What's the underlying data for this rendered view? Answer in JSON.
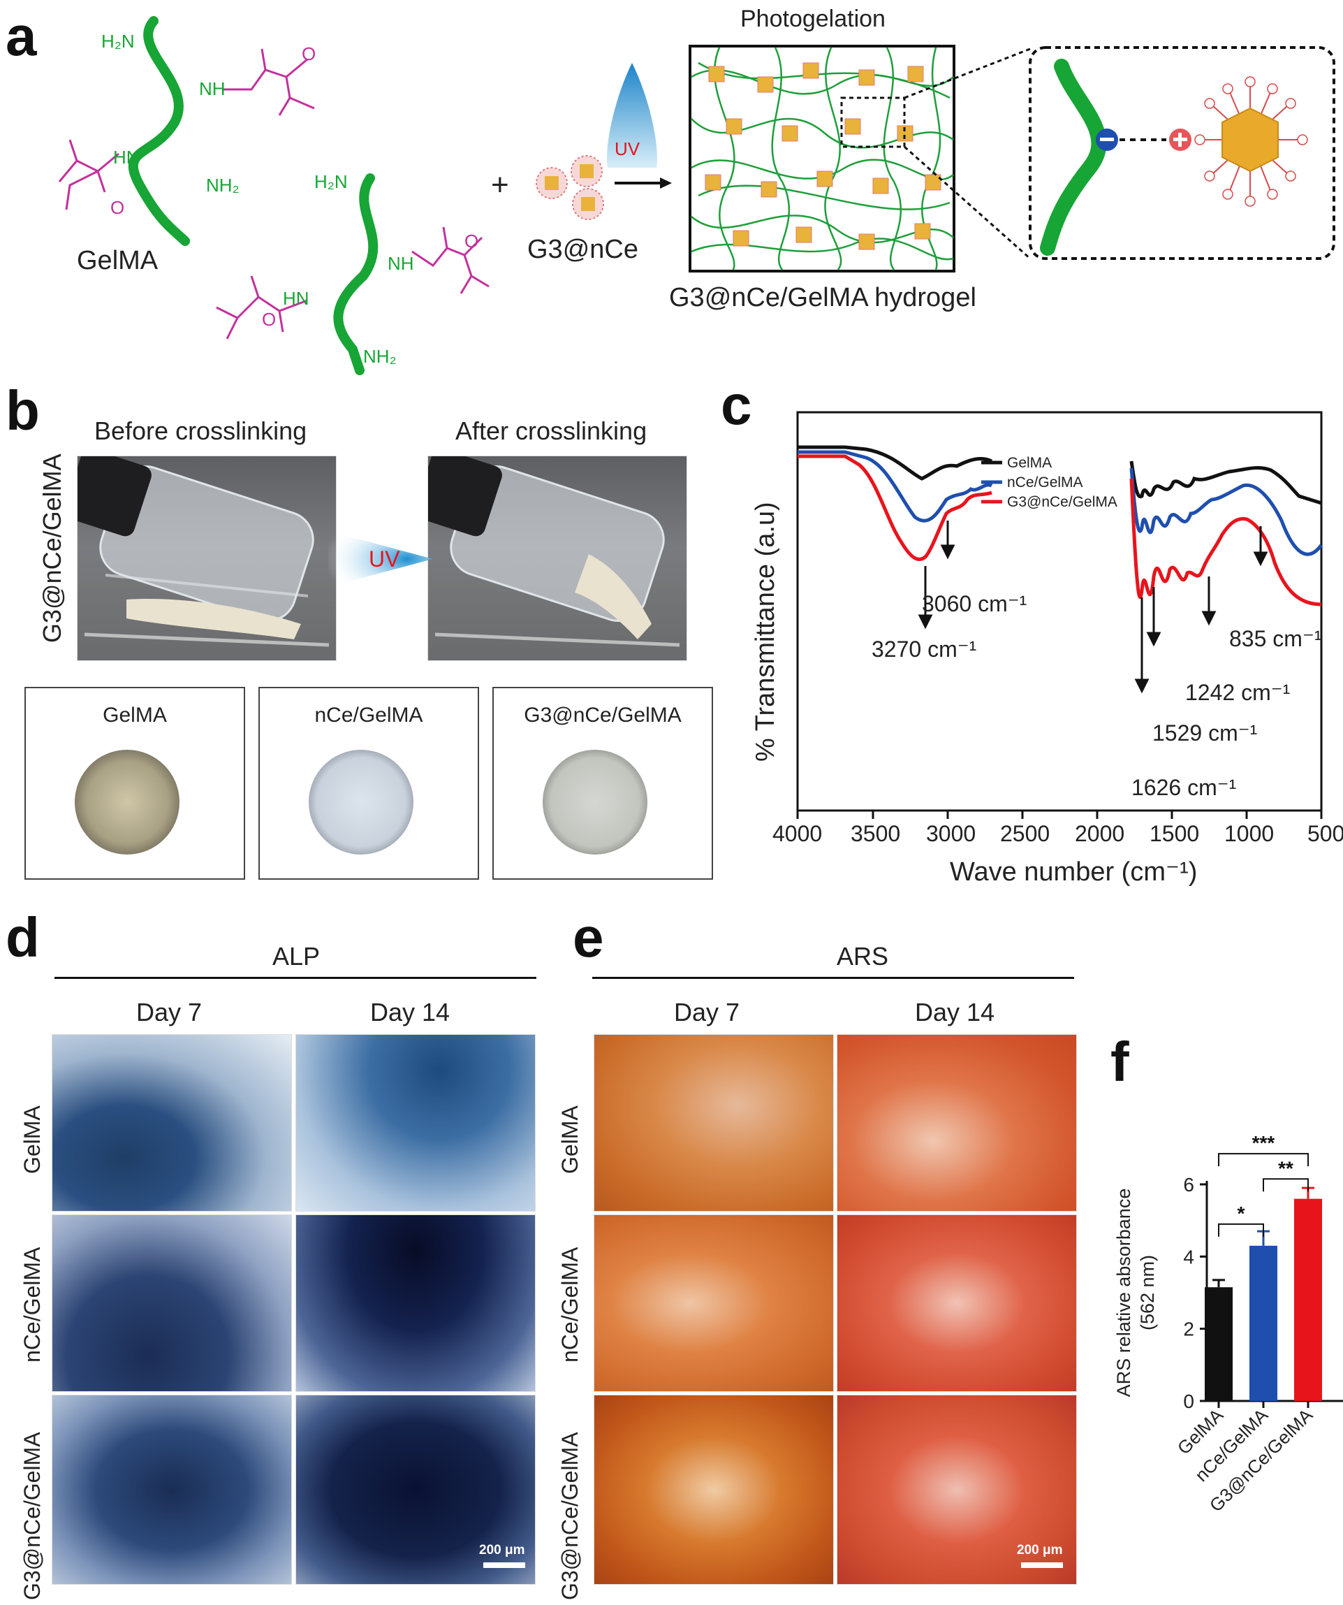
{
  "panels": {
    "a": "a",
    "b": "b",
    "c": "c",
    "d": "d",
    "e": "e",
    "f": "f"
  },
  "panel_a": {
    "gelma_label": "GelMA",
    "plus": "+",
    "nanoparticle_label": "G3@nCe",
    "uv_label": "UV",
    "photogelation_label": "Photogelation",
    "hydrogel_label": "G3@nCe/GelMA hydrogel",
    "chem": {
      "h2n": "H₂N",
      "nh": "NH",
      "hn": "HN",
      "nh2": "NH₂",
      "o": "O"
    }
  },
  "panel_b": {
    "before_label": "Before crosslinking",
    "after_label": "After crosslinking",
    "side_label": "G3@nCe/GelMA",
    "uv_label": "UV",
    "discs": [
      "GelMA",
      "nCe/GelMA",
      "G3@nCe/GelMA"
    ]
  },
  "panel_c": {
    "xlabel": "Wave number (cm⁻¹)",
    "ylabel": "% Transmittance (a.u)",
    "xticks": [
      "4000",
      "3500",
      "3000",
      "2500",
      "2000",
      "1500",
      "1000",
      "500"
    ],
    "legend": [
      {
        "name": "GelMA",
        "color": "#111111"
      },
      {
        "name": "nCe/GelMA",
        "color": "#1f4fae"
      },
      {
        "name": "G3@nCe/GelMA",
        "color": "#e8141c"
      }
    ],
    "annotations": [
      "3060 cm⁻¹",
      "3270 cm⁻¹",
      "835 cm⁻¹",
      "1242 cm⁻¹",
      "1529 cm⁻¹",
      "1626 cm⁻¹"
    ]
  },
  "panel_d": {
    "title": "ALP",
    "col1": "Day 7",
    "col2": "Day 14",
    "rows": [
      "GelMA",
      "nCe/GelMA",
      "G3@nCe/GelMA"
    ],
    "scalebar": "200 μm"
  },
  "panel_e": {
    "title": "ARS",
    "col1": "Day 7",
    "col2": "Day 14",
    "rows": [
      "GelMA",
      "nCe/GelMA",
      "G3@nCe/GelMA"
    ],
    "scalebar": "200 μm"
  },
  "chart_data": {
    "type": "bar",
    "categories": [
      "GelMA",
      "nCe/GelMA",
      "G3@nCe/GelMA"
    ],
    "values": [
      3.15,
      4.3,
      5.6
    ],
    "errors": [
      0.2,
      0.4,
      0.3
    ],
    "colors": [
      "#111111",
      "#1f4fae",
      "#e8141c"
    ],
    "ylabel": "ARS relative absorbance (562 nm)",
    "ylabel_line1": "ARS relative absorbance",
    "ylabel_line2": "(562 nm)",
    "ylim": [
      0,
      6
    ],
    "yticks": [
      "0",
      "2",
      "4",
      "6"
    ],
    "significance": [
      {
        "from": 0,
        "to": 1,
        "label": "*"
      },
      {
        "from": 1,
        "to": 2,
        "label": "**"
      },
      {
        "from": 0,
        "to": 2,
        "label": "***"
      }
    ]
  }
}
